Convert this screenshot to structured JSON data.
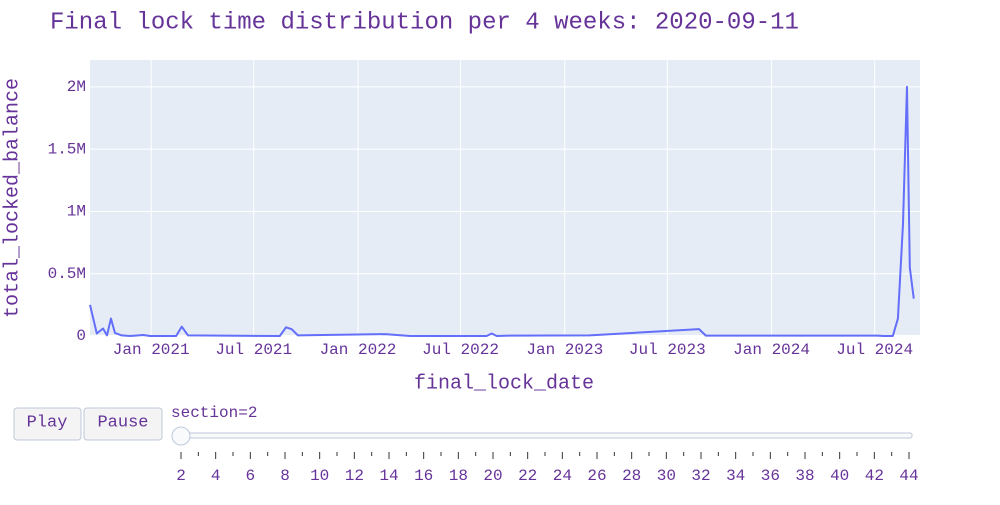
{
  "chart_data": {
    "type": "line",
    "title": "Final lock time distribution per 4 weeks: 2020-09-11",
    "x_label": "final_lock_date",
    "y_label": "total_locked_balance",
    "color": "#636efa",
    "grid": true,
    "x": [
      "2020-09-15",
      "2020-09-27",
      "2020-10-08",
      "2020-10-15",
      "2020-10-22",
      "2020-10-29",
      "2020-11-10",
      "2020-11-25",
      "2020-12-18",
      "2020-12-30",
      "2021-02-14",
      "2021-02-24",
      "2021-03-07",
      "2021-08-16",
      "2021-08-27",
      "2021-09-06",
      "2021-09-17",
      "2022-02-18",
      "2022-04-03",
      "2022-08-16",
      "2022-08-25",
      "2022-09-03",
      "2022-09-26",
      "2023-02-14",
      "2023-08-26",
      "2023-09-07",
      "2024-07-05",
      "2024-07-17",
      "2024-08-02",
      "2024-08-11",
      "2024-08-20",
      "2024-08-27",
      "2024-09-01",
      "2024-09-08"
    ],
    "values": [
      250000,
      20000,
      60000,
      5000,
      140000,
      25000,
      5000,
      0,
      8000,
      0,
      0,
      75000,
      5000,
      0,
      70000,
      55000,
      5000,
      15000,
      0,
      0,
      20000,
      0,
      3000,
      5000,
      55000,
      3000,
      3000,
      0,
      0,
      140000,
      900000,
      2000000,
      550000,
      300000
    ],
    "xlim": [
      "2020-09-15",
      "2024-09-19"
    ],
    "xticks": [
      {
        "value": "2021-01-01",
        "label": "Jan 2021"
      },
      {
        "value": "2021-07-01",
        "label": "Jul 2021"
      },
      {
        "value": "2022-01-01",
        "label": "Jan 2022"
      },
      {
        "value": "2022-07-01",
        "label": "Jul 2022"
      },
      {
        "value": "2023-01-01",
        "label": "Jan 2023"
      },
      {
        "value": "2023-07-01",
        "label": "Jul 2023"
      },
      {
        "value": "2024-01-01",
        "label": "Jan 2024"
      },
      {
        "value": "2024-07-01",
        "label": "Jul 2024"
      }
    ],
    "ylim": [
      0,
      2216000
    ],
    "yticks": [
      0,
      {
        "value": 500000,
        "label": "0.5M"
      },
      {
        "value": 1000000,
        "label": "1M"
      },
      {
        "value": 1500000,
        "label": "1.5M"
      },
      {
        "value": 2000000,
        "label": "2M"
      }
    ]
  },
  "controls": {
    "play": "Play",
    "pause": "Pause",
    "current_label": "section=2",
    "slider_steps": [
      2,
      3,
      4,
      5,
      6,
      7,
      8,
      9,
      10,
      11,
      12,
      13,
      14,
      15,
      16,
      17,
      18,
      19,
      20,
      21,
      22,
      23,
      24,
      25,
      26,
      27,
      28,
      29,
      30,
      31,
      32,
      33,
      34,
      35,
      36,
      37,
      38,
      39,
      40,
      41,
      42,
      43,
      44
    ]
  }
}
